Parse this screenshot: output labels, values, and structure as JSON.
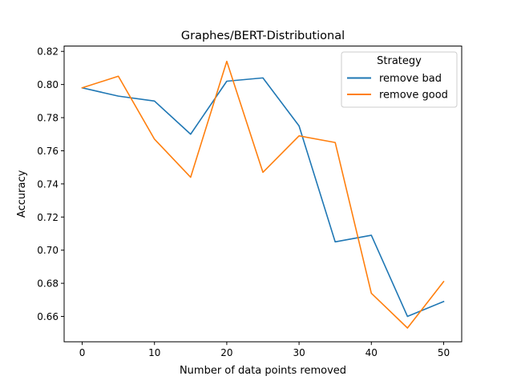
{
  "chart_data": {
    "type": "line",
    "title": "Graphes/BERT-Distributional",
    "xlabel": "Number of data points removed",
    "ylabel": "Accuracy",
    "x": [
      0,
      5,
      10,
      15,
      20,
      25,
      30,
      35,
      40,
      45,
      50
    ],
    "xlim": [
      -2.5,
      52.5
    ],
    "ylim": [
      0.6447,
      0.8232
    ],
    "xticks": [
      0,
      10,
      20,
      30,
      40,
      50
    ],
    "xtick_labels": [
      "0",
      "10",
      "20",
      "30",
      "40",
      "50"
    ],
    "yticks": [
      0.66,
      0.68,
      0.7,
      0.72,
      0.74,
      0.76,
      0.78,
      0.8,
      0.82
    ],
    "ytick_labels": [
      "0.66",
      "0.68",
      "0.70",
      "0.72",
      "0.74",
      "0.76",
      "0.78",
      "0.80",
      "0.82"
    ],
    "grid": false,
    "legend": {
      "title": "Strategy",
      "placement": "top-right"
    },
    "series": [
      {
        "name": "remove bad",
        "color": "#1f77b4",
        "values": [
          0.798,
          0.793,
          0.79,
          0.77,
          0.802,
          0.804,
          0.775,
          0.705,
          0.709,
          0.66,
          0.669
        ]
      },
      {
        "name": "remove good",
        "color": "#ff7f0e",
        "values": [
          0.798,
          0.805,
          0.767,
          0.744,
          0.814,
          0.747,
          0.769,
          0.765,
          0.674,
          0.653,
          0.681
        ]
      }
    ]
  }
}
